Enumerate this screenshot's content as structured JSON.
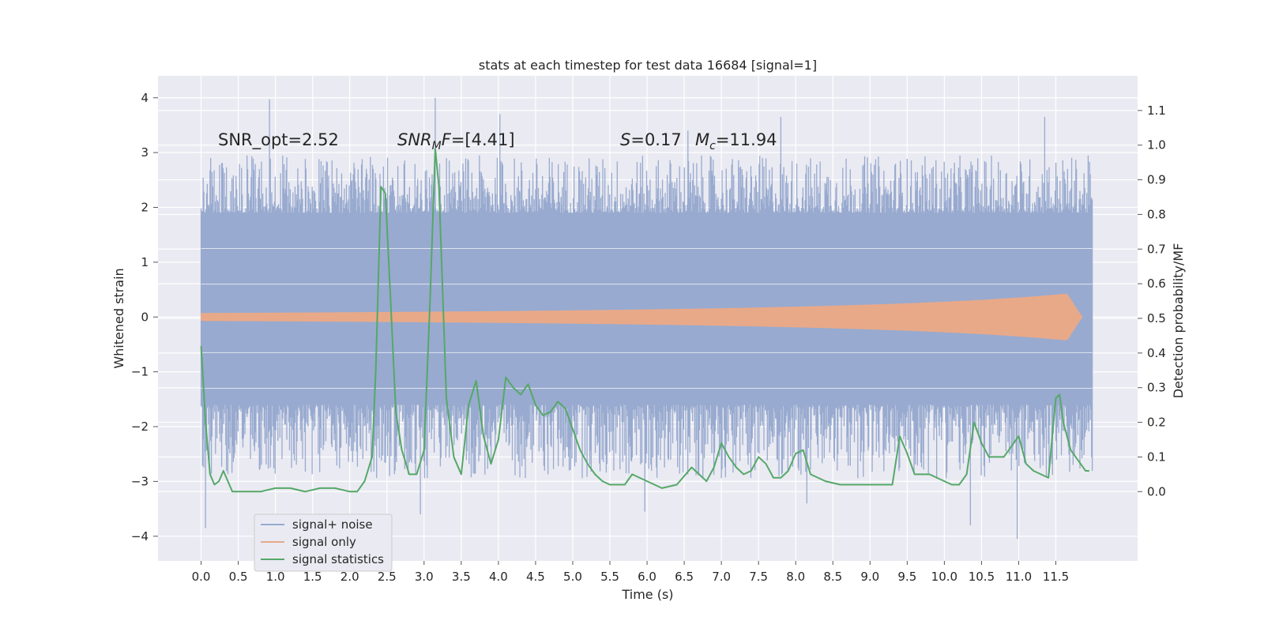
{
  "chart_data": {
    "type": "line",
    "title": "stats at each timestep for test data 16684 [signal=1]",
    "xlabel": "Time (s)",
    "ylabel": "Whitened strain",
    "ylabel_right": "Detection probability/MF",
    "xlim": [
      -0.58,
      12.6
    ],
    "ylim": [
      -4.45,
      4.4
    ],
    "ylim_right": [
      -0.2,
      1.2
    ],
    "x_ticks": [
      0.0,
      0.5,
      1.0,
      1.5,
      2.0,
      2.5,
      3.0,
      3.5,
      4.0,
      4.5,
      5.0,
      5.5,
      6.0,
      6.5,
      7.0,
      7.5,
      8.0,
      8.5,
      9.0,
      9.5,
      10.0,
      10.5,
      11.0,
      11.5
    ],
    "x_tick_labels": [
      "0.0",
      "0.5",
      "1.0",
      "1.5",
      "2.0",
      "2.5",
      "3.0",
      "3.5",
      "4.0",
      "4.5",
      "5.0",
      "5.5",
      "6.0",
      "6.5",
      "7.0",
      "7.5",
      "8.0",
      "8.5",
      "9.0",
      "9.5",
      "10.0",
      "10.5",
      "11.0",
      "11.5"
    ],
    "y_ticks": [
      -4,
      -3,
      -2,
      -1,
      0,
      1,
      2,
      3,
      4
    ],
    "y_tick_labels": [
      "−4",
      "−3",
      "−2",
      "−1",
      "0",
      "1",
      "2",
      "3",
      "4"
    ],
    "y_right_ticks": [
      0.0,
      0.1,
      0.2,
      0.3,
      0.4,
      0.5,
      0.6,
      0.7,
      0.8,
      0.9,
      1.0,
      1.1
    ],
    "y_right_tick_labels": [
      "0.0",
      "0.1",
      "0.2",
      "0.3",
      "0.4",
      "0.5",
      "0.6",
      "0.7",
      "0.8",
      "0.9",
      "1.0",
      "1.1"
    ],
    "grid": true,
    "legend_placement": "lower-left",
    "legend": [
      {
        "label": "signal+ noise",
        "color": "#98aacf"
      },
      {
        "label": "signal only",
        "color": "#e8a989"
      },
      {
        "label": "signal statistics",
        "color": "#55a868"
      }
    ],
    "annotations": [
      {
        "text": "SNR_opt=2.52",
        "x": 0.2,
        "y": 3.2
      },
      {
        "text": "SNR_MF=[4.41]",
        "x": 2.6,
        "y": 3.2
      },
      {
        "text": "S=0.17",
        "x": 5.6,
        "y": 3.2
      },
      {
        "text": "M_c=11.94",
        "x": 6.6,
        "y": 3.2
      }
    ],
    "series": [
      {
        "name": "signal+ noise",
        "color": "#98aacf",
        "kind": "noise-band",
        "t_range": [
          0.0,
          11.99
        ],
        "dense_band": [
          -1.6,
          1.9
        ],
        "peaks_high": [
          [
            0.92,
            3.97
          ],
          [
            3.15,
            4.0
          ],
          [
            4.02,
            3.7
          ],
          [
            6.55,
            3.4
          ],
          [
            7.8,
            3.65
          ],
          [
            11.35,
            3.65
          ]
        ],
        "peaks_low": [
          [
            0.06,
            -3.85
          ],
          [
            2.95,
            -3.6
          ],
          [
            5.97,
            -3.55
          ],
          [
            8.15,
            -3.4
          ],
          [
            10.35,
            -3.8
          ],
          [
            10.98,
            -4.05
          ]
        ]
      },
      {
        "name": "signal only",
        "color": "#e8a989",
        "kind": "chirp",
        "t_range": [
          0.0,
          11.85
        ],
        "peak_time": 11.65,
        "peak_amplitude": 0.42
      },
      {
        "name": "signal statistics",
        "color": "#55a868",
        "axis": "right",
        "x": [
          0.0,
          0.06,
          0.12,
          0.18,
          0.24,
          0.3,
          0.36,
          0.42,
          0.5,
          0.6,
          0.8,
          1.0,
          1.2,
          1.4,
          1.6,
          1.8,
          2.0,
          2.1,
          2.2,
          2.3,
          2.35,
          2.42,
          2.48,
          2.55,
          2.62,
          2.7,
          2.8,
          2.9,
          3.0,
          3.08,
          3.15,
          3.2,
          3.3,
          3.4,
          3.5,
          3.6,
          3.7,
          3.8,
          3.9,
          4.0,
          4.1,
          4.2,
          4.3,
          4.4,
          4.5,
          4.6,
          4.7,
          4.8,
          4.9,
          5.0,
          5.1,
          5.2,
          5.3,
          5.4,
          5.5,
          5.6,
          5.7,
          5.8,
          6.0,
          6.2,
          6.4,
          6.6,
          6.7,
          6.8,
          6.9,
          7.0,
          7.1,
          7.2,
          7.3,
          7.4,
          7.5,
          7.6,
          7.7,
          7.8,
          7.9,
          8.0,
          8.1,
          8.2,
          8.4,
          8.6,
          8.8,
          9.0,
          9.2,
          9.3,
          9.4,
          9.5,
          9.6,
          9.8,
          10.0,
          10.1,
          10.2,
          10.3,
          10.4,
          10.5,
          10.6,
          10.8,
          11.0,
          11.1,
          11.2,
          11.3,
          11.4,
          11.5,
          11.55,
          11.6,
          11.7,
          11.8,
          11.9,
          11.95
        ],
        "values": [
          0.42,
          0.2,
          0.05,
          0.02,
          0.03,
          0.06,
          0.03,
          0.0,
          0.0,
          0.0,
          0.0,
          0.01,
          0.01,
          0.0,
          0.01,
          0.01,
          0.0,
          0.0,
          0.03,
          0.1,
          0.35,
          0.88,
          0.86,
          0.55,
          0.23,
          0.12,
          0.05,
          0.05,
          0.12,
          0.55,
          0.99,
          0.88,
          0.27,
          0.1,
          0.05,
          0.25,
          0.32,
          0.16,
          0.08,
          0.15,
          0.33,
          0.3,
          0.28,
          0.31,
          0.25,
          0.22,
          0.23,
          0.26,
          0.24,
          0.18,
          0.12,
          0.08,
          0.05,
          0.03,
          0.02,
          0.02,
          0.02,
          0.05,
          0.03,
          0.01,
          0.02,
          0.07,
          0.05,
          0.03,
          0.07,
          0.14,
          0.1,
          0.07,
          0.05,
          0.06,
          0.1,
          0.08,
          0.04,
          0.04,
          0.06,
          0.11,
          0.12,
          0.05,
          0.03,
          0.02,
          0.02,
          0.02,
          0.02,
          0.02,
          0.16,
          0.11,
          0.05,
          0.05,
          0.03,
          0.02,
          0.02,
          0.05,
          0.2,
          0.14,
          0.1,
          0.1,
          0.16,
          0.08,
          0.06,
          0.05,
          0.04,
          0.27,
          0.28,
          0.2,
          0.12,
          0.09,
          0.06,
          0.06
        ]
      }
    ]
  }
}
